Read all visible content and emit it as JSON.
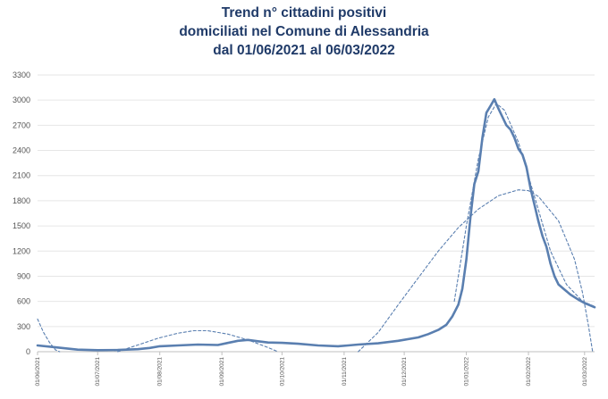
{
  "chart_data": {
    "type": "line",
    "title_lines": [
      "Trend n° cittadini positivi",
      "domiciliati nel Comune di Alessandria",
      "dal 01/06/2021 al 06/03/2022"
    ],
    "xlabel": "",
    "ylabel": "",
    "ylim": [
      0,
      3300
    ],
    "yticks": [
      0,
      300,
      600,
      900,
      1200,
      1500,
      1800,
      2100,
      2400,
      2700,
      3000,
      3300
    ],
    "grid": true,
    "legend": "none",
    "x_tick_labels": [
      {
        "label": "01/06/2021",
        "day": 0
      },
      {
        "label": "01/07/2021",
        "day": 30
      },
      {
        "label": "01/08/2021",
        "day": 61
      },
      {
        "label": "01/09/2021",
        "day": 92
      },
      {
        "label": "01/10/2021",
        "day": 122
      },
      {
        "label": "01/11/2021",
        "day": 153
      },
      {
        "label": "01/12/2021",
        "day": 183
      },
      {
        "label": "01/01/2022",
        "day": 214
      },
      {
        "label": "01/02/2022",
        "day": 245
      },
      {
        "label": "01/03/2022",
        "day": 273
      }
    ],
    "x_last_day": 278,
    "series": [
      {
        "style": "solid",
        "color": "#5a7fb0",
        "points": [
          [
            0,
            75
          ],
          [
            10,
            50
          ],
          [
            20,
            25
          ],
          [
            30,
            18
          ],
          [
            40,
            20
          ],
          [
            50,
            30
          ],
          [
            56,
            45
          ],
          [
            61,
            65
          ],
          [
            70,
            75
          ],
          [
            80,
            85
          ],
          [
            90,
            80
          ],
          [
            96,
            110
          ],
          [
            100,
            130
          ],
          [
            105,
            140
          ],
          [
            110,
            125
          ],
          [
            115,
            110
          ],
          [
            122,
            105
          ],
          [
            130,
            95
          ],
          [
            140,
            75
          ],
          [
            150,
            65
          ],
          [
            155,
            75
          ],
          [
            160,
            85
          ],
          [
            170,
            100
          ],
          [
            180,
            130
          ],
          [
            190,
            170
          ],
          [
            195,
            210
          ],
          [
            200,
            260
          ],
          [
            204,
            320
          ],
          [
            207,
            420
          ],
          [
            210,
            560
          ],
          [
            212,
            750
          ],
          [
            214,
            1100
          ],
          [
            216,
            1600
          ],
          [
            218,
            2000
          ],
          [
            220,
            2150
          ],
          [
            222,
            2550
          ],
          [
            224,
            2850
          ],
          [
            226,
            2930
          ],
          [
            228,
            3010
          ],
          [
            230,
            2900
          ],
          [
            232,
            2800
          ],
          [
            234,
            2700
          ],
          [
            236,
            2650
          ],
          [
            238,
            2550
          ],
          [
            240,
            2420
          ],
          [
            242,
            2350
          ],
          [
            244,
            2200
          ],
          [
            246,
            1950
          ],
          [
            248,
            1750
          ],
          [
            250,
            1550
          ],
          [
            252,
            1380
          ],
          [
            254,
            1250
          ],
          [
            256,
            1050
          ],
          [
            258,
            900
          ],
          [
            260,
            800
          ],
          [
            263,
            740
          ],
          [
            266,
            680
          ],
          [
            270,
            620
          ],
          [
            273,
            580
          ],
          [
            276,
            550
          ],
          [
            278,
            530
          ]
        ]
      },
      {
        "style": "dashed",
        "color": "#5a7fb0",
        "points": [
          [
            0,
            390
          ],
          [
            3,
            230
          ],
          [
            6,
            110
          ],
          [
            9,
            20
          ],
          [
            11,
            0
          ]
        ]
      },
      {
        "style": "dashed",
        "color": "#5a7fb0",
        "points": [
          [
            40,
            0
          ],
          [
            50,
            80
          ],
          [
            60,
            160
          ],
          [
            70,
            220
          ],
          [
            78,
            250
          ],
          [
            85,
            250
          ],
          [
            95,
            210
          ],
          [
            105,
            140
          ],
          [
            115,
            50
          ],
          [
            120,
            0
          ]
        ]
      },
      {
        "style": "dashed",
        "color": "#5a7fb0",
        "points": [
          [
            160,
            0
          ],
          [
            170,
            230
          ],
          [
            180,
            560
          ],
          [
            190,
            880
          ],
          [
            200,
            1200
          ],
          [
            210,
            1480
          ],
          [
            220,
            1700
          ],
          [
            230,
            1860
          ],
          [
            240,
            1930
          ],
          [
            245,
            1920
          ],
          [
            250,
            1850
          ],
          [
            260,
            1560
          ],
          [
            268,
            1100
          ],
          [
            272,
            700
          ],
          [
            275,
            300
          ],
          [
            277,
            0
          ]
        ]
      },
      {
        "style": "dashed",
        "color": "#5a7fb0",
        "points": [
          [
            208,
            600
          ],
          [
            214,
            1500
          ],
          [
            220,
            2300
          ],
          [
            225,
            2800
          ],
          [
            229,
            2960
          ],
          [
            233,
            2880
          ],
          [
            240,
            2500
          ],
          [
            248,
            1850
          ],
          [
            256,
            1200
          ],
          [
            264,
            800
          ],
          [
            272,
            600
          ],
          [
            278,
            540
          ]
        ]
      }
    ]
  }
}
